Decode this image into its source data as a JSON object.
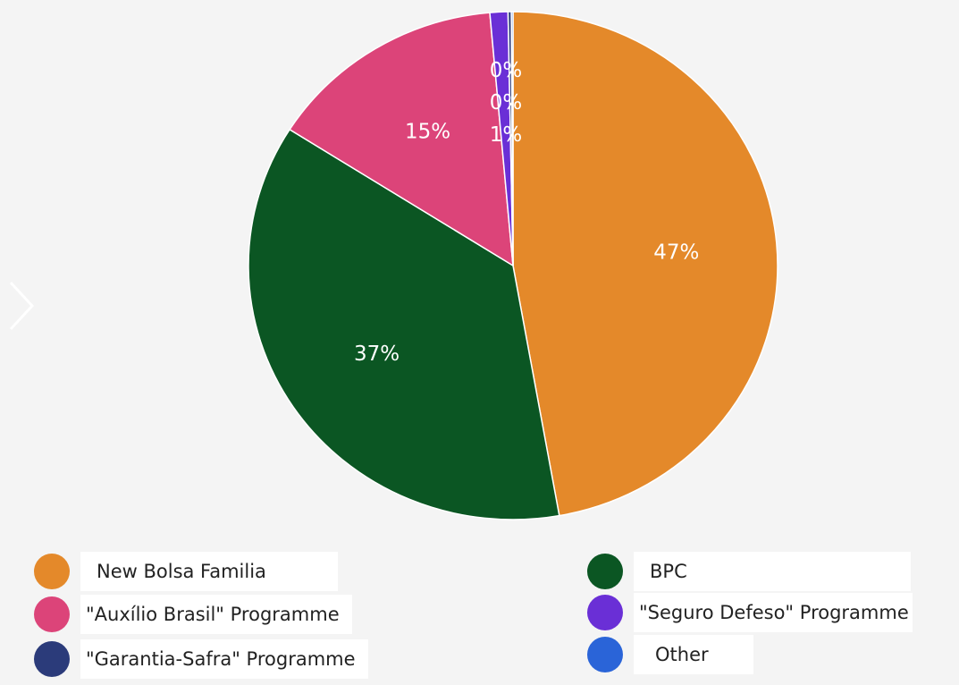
{
  "chart_data": {
    "type": "pie",
    "title": "",
    "slices": [
      {
        "name": "New Bolsa Familia",
        "value": 47.2,
        "label": "47%",
        "color": "#e4892a"
      },
      {
        "name": "BPC",
        "value": 36.8,
        "label": "37%",
        "color": "#0b5623"
      },
      {
        "name": "\"Auxílio Brasil\" Programme",
        "value": 14.6,
        "label": "15%",
        "color": "#dc4479"
      },
      {
        "name": "\"Seguro Defeso\" Programme",
        "value": 1.1,
        "label": "1%",
        "color": "#6a2fd6"
      },
      {
        "name": "\"Garantia-Safra\" Programme",
        "value": 0.2,
        "label": "0%",
        "color": "#2b3b7a"
      },
      {
        "name": "Other",
        "value": 0.1,
        "label": "0%",
        "color": "#2a64d8"
      }
    ],
    "legend_position": "bottom"
  },
  "legend": [
    {
      "label": "New Bolsa Familia",
      "color": "#e4892a"
    },
    {
      "label": "BPC",
      "color": "#0b5623"
    },
    {
      "label": "\"Auxílio Brasil\" Programme",
      "color": "#dc4479"
    },
    {
      "label": "\"Seguro Defeso\" Programme",
      "color": "#6a2fd6"
    },
    {
      "label": "\"Garantia-Safra\" Programme",
      "color": "#2b3b7a"
    },
    {
      "label": "Other",
      "color": "#2a64d8"
    }
  ]
}
